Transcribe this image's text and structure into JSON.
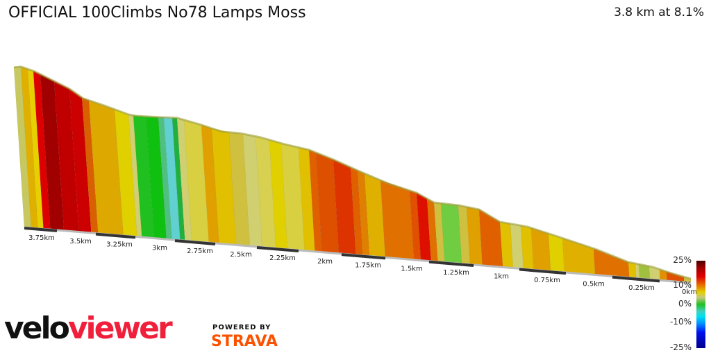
{
  "header": {
    "title": "OFFICIAL 100Climbs No78 Lamps Moss",
    "summary": "3.8 km at 8.1%"
  },
  "chart_data": {
    "type": "area",
    "title": "OFFICIAL 100Climbs No78 Lamps Moss",
    "x_tick_labels": [
      "3.75km",
      "3.5km",
      "3.25km",
      "3km",
      "2.75km",
      "2.5km",
      "2.25km",
      "2km",
      "1.75km",
      "1.5km",
      "1.25km",
      "1km",
      "0.75km",
      "0.5km",
      "0.25km",
      "0km"
    ],
    "distance_km": 3.8,
    "average_gradient_pct": 8.1,
    "segment_colors": [
      "#c8c860",
      "#e0b000",
      "#e8d000",
      "#dd0000",
      "#a00000",
      "#c00000",
      "#cc0000",
      "#d86000",
      "#dda800",
      "#e0d000",
      "#d0d070",
      "#20c020",
      "#10c010",
      "#50c080",
      "#60d0d0",
      "#20b040",
      "#d0d070",
      "#d8d040",
      "#e0a000",
      "#e0c000",
      "#d0c040",
      "#d0d070",
      "#d8d050",
      "#e0d000",
      "#d8d040",
      "#e0c000",
      "#e06000",
      "#dd5000",
      "#dd3300",
      "#e06000",
      "#e08000",
      "#e0b000",
      "#e07000",
      "#e05000",
      "#dd1000",
      "#e07000",
      "#d0c040",
      "#70cc40",
      "#d0c040",
      "#e0a000",
      "#e06000",
      "#e0c000",
      "#d0d070",
      "#e0c000",
      "#e0a000",
      "#e0d000",
      "#e0b000",
      "#e07000",
      "#e0c000",
      "#d0d070",
      "#a0c040",
      "#d0d070",
      "#e09000",
      "#e05000",
      "#d0c040"
    ],
    "legend": {
      "labels": [
        "25%",
        "10%",
        "0%",
        "-10%",
        "-25%"
      ],
      "colormap": "gradient"
    }
  },
  "branding": {
    "velo": "velo",
    "viewer": "viewer",
    "powered_by": "POWERED BY",
    "strava": "STRAVA"
  }
}
